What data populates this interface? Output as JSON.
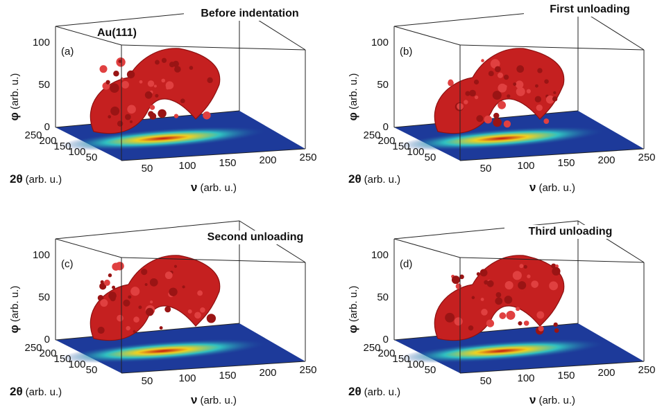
{
  "panels": [
    {
      "label": "(a)",
      "title": "Before indentation",
      "note": "Au(111)"
    },
    {
      "label": "(b)",
      "title": "First unloading"
    },
    {
      "label": "(c)",
      "title": "Second unloading"
    },
    {
      "label": "(d)",
      "title": "Third unloading"
    }
  ],
  "axes": {
    "phi_symbol": "φ",
    "two_theta_symbol": "2θ",
    "nu_symbol": "ν",
    "unit": "(arb. u.)",
    "phi_ticks": [
      0,
      50,
      100
    ],
    "two_theta_ticks": [
      250,
      200,
      150,
      100,
      50
    ],
    "nu_ticks": [
      50,
      100,
      150,
      200,
      250
    ]
  }
}
